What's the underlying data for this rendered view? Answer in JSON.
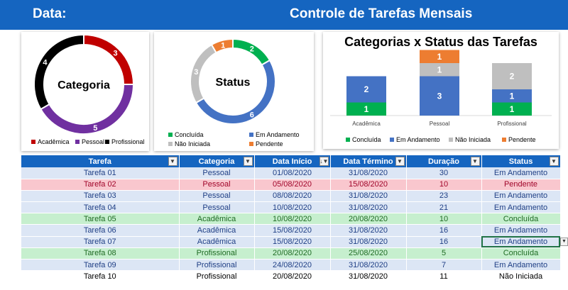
{
  "header": {
    "data_label": "Data:",
    "title": "Controle de Tarefas Mensais"
  },
  "colors": {
    "header_blue": "#1565c0",
    "academica": "#c00000",
    "pessoal": "#7030a0",
    "profissional": "#000000",
    "concluida": "#00b050",
    "em_andamento": "#4472c4",
    "nao_iniciada": "#bfbfbf",
    "pendente": "#ed7d31"
  },
  "categoria_donut": {
    "center_label": "Categoria",
    "slices": [
      {
        "name": "Acadêmica",
        "value": 3,
        "color": "#c00000"
      },
      {
        "name": "Pessoal",
        "value": 5,
        "color": "#7030a0"
      },
      {
        "name": "Profissional",
        "value": 4,
        "color": "#000000"
      }
    ]
  },
  "status_donut": {
    "center_label": "Status",
    "slices": [
      {
        "name": "Concluída",
        "value": 2,
        "color": "#00b050"
      },
      {
        "name": "Em Andamento",
        "value": 6,
        "color": "#4472c4"
      },
      {
        "name": "Não Iniciada",
        "value": 3,
        "color": "#bfbfbf"
      },
      {
        "name": "Pendente",
        "value": 1,
        "color": "#ed7d31"
      }
    ]
  },
  "chart_data": {
    "type": "bar",
    "stacked": true,
    "title": "Categorias x Status das Tarefas",
    "categories": [
      "Acadêmica",
      "Pessoal",
      "Profissional"
    ],
    "series": [
      {
        "name": "Concluída",
        "color": "#00b050",
        "values": [
          1,
          0,
          1
        ]
      },
      {
        "name": "Em Andamento",
        "color": "#4472c4",
        "values": [
          2,
          3,
          1
        ]
      },
      {
        "name": "Não Iniciada",
        "color": "#bfbfbf",
        "values": [
          0,
          1,
          2
        ]
      },
      {
        "name": "Pendente",
        "color": "#ed7d31",
        "values": [
          0,
          1,
          0
        ]
      }
    ],
    "legend_position": "bottom",
    "grid": false
  },
  "table": {
    "headers": [
      "Tarefa",
      "Categoria",
      "Data Início",
      "Data Término",
      "Duração",
      "Status"
    ],
    "rows": [
      {
        "style": "blue",
        "cells": [
          "Tarefa 01",
          "Pessoal",
          "01/08/2020",
          "31/08/2020",
          "30",
          "Em Andamento"
        ]
      },
      {
        "style": "red",
        "cells": [
          "Tarefa 02",
          "Pessoal",
          "05/08/2020",
          "15/08/2020",
          "10",
          "Pendente"
        ]
      },
      {
        "style": "blue",
        "cells": [
          "Tarefa 03",
          "Pessoal",
          "08/08/2020",
          "31/08/2020",
          "23",
          "Em Andamento"
        ]
      },
      {
        "style": "blue",
        "cells": [
          "Tarefa 04",
          "Pessoal",
          "10/08/2020",
          "31/08/2020",
          "21",
          "Em Andamento"
        ]
      },
      {
        "style": "green",
        "cells": [
          "Tarefa 05",
          "Acadêmica",
          "10/08/2020",
          "20/08/2020",
          "10",
          "Concluída"
        ]
      },
      {
        "style": "blue",
        "cells": [
          "Tarefa 06",
          "Acadêmica",
          "15/08/2020",
          "31/08/2020",
          "16",
          "Em Andamento"
        ]
      },
      {
        "style": "blue",
        "cells": [
          "Tarefa 07",
          "Acadêmica",
          "15/08/2020",
          "31/08/2020",
          "16",
          "Em Andamento"
        ]
      },
      {
        "style": "green",
        "cells": [
          "Tarefa 08",
          "Profissional",
          "20/08/2020",
          "25/08/2020",
          "5",
          "Concluída"
        ]
      },
      {
        "style": "blue",
        "cells": [
          "Tarefa 09",
          "Profissional",
          "24/08/2020",
          "31/08/2020",
          "7",
          "Em Andamento"
        ]
      },
      {
        "style": "plain",
        "cells": [
          "Tarefa 10",
          "Profissional",
          "20/08/2020",
          "31/08/2020",
          "11",
          "Não Iniciada"
        ]
      }
    ]
  }
}
